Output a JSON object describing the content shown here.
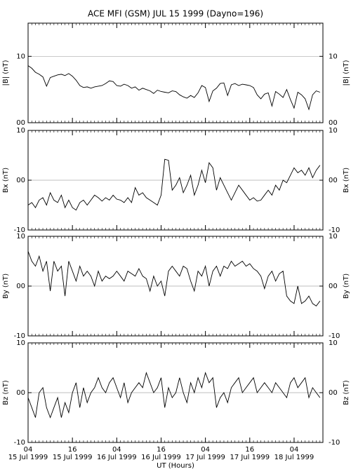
{
  "title": "ACE MFI (GSM) JUL 15 1999 (Dayno=196)",
  "xlabel": "UT (Hours)",
  "chart_data": [
    {
      "type": "line",
      "ylabel": "|B| (nT)",
      "color": "#000000",
      "grid": true,
      "xlim": [
        4,
        83.8
      ],
      "ylim": [
        0,
        15
      ],
      "yticks": [
        {
          "value": 0,
          "label": "00"
        },
        10
      ],
      "x": [
        4,
        5,
        6,
        7,
        8,
        9,
        10,
        11,
        12,
        13,
        14,
        15,
        16,
        17,
        18,
        19,
        20,
        21,
        22,
        23,
        24,
        25,
        26,
        27,
        28,
        29,
        30,
        31,
        32,
        33,
        34,
        35,
        36,
        37,
        38,
        39,
        40,
        41,
        42,
        43,
        44,
        45,
        46,
        47,
        48,
        49,
        50,
        51,
        52,
        53,
        54,
        55,
        56,
        57,
        58,
        59,
        60,
        61,
        62,
        63,
        64,
        65,
        66,
        67,
        68,
        69,
        70,
        71,
        72,
        73,
        74,
        75,
        76,
        77,
        78,
        79,
        80,
        81,
        82,
        83
      ],
      "values": [
        8.6,
        8.2,
        7.6,
        7.3,
        6.9,
        5.5,
        6.8,
        7.0,
        7.2,
        7.3,
        7.1,
        7.4,
        7.0,
        6.4,
        5.6,
        5.3,
        5.4,
        5.2,
        5.4,
        5.5,
        5.6,
        5.9,
        6.3,
        6.2,
        5.6,
        5.5,
        5.8,
        5.6,
        5.2,
        5.4,
        4.9,
        5.2,
        5.0,
        4.8,
        4.4,
        4.9,
        4.7,
        4.6,
        4.5,
        4.8,
        4.7,
        4.2,
        3.9,
        3.7,
        4.1,
        3.8,
        4.5,
        5.6,
        5.3,
        3.2,
        4.8,
        5.2,
        5.9,
        6.0,
        4.1,
        5.7,
        5.9,
        5.6,
        5.8,
        5.7,
        5.6,
        5.3,
        4.2,
        3.6,
        4.3,
        4.5,
        2.5,
        4.7,
        4.3,
        3.8,
        5.0,
        3.5,
        2.2,
        4.6,
        4.2,
        3.6,
        2.0,
        4.2,
        4.8,
        4.6
      ]
    },
    {
      "type": "line",
      "ylabel": "Bx (nT)",
      "color": "#000000",
      "grid": true,
      "xlim": [
        4,
        83.8
      ],
      "ylim": [
        -10,
        10
      ],
      "yticks": [
        -10,
        {
          "value": 0,
          "label": "00"
        },
        10
      ],
      "x": [
        4,
        5,
        6,
        7,
        8,
        9,
        10,
        11,
        12,
        13,
        14,
        15,
        16,
        17,
        18,
        19,
        20,
        21,
        22,
        23,
        24,
        25,
        26,
        27,
        28,
        29,
        30,
        31,
        32,
        33,
        34,
        35,
        36,
        37,
        38,
        39,
        40,
        41,
        42,
        43,
        44,
        45,
        46,
        47,
        48,
        49,
        50,
        51,
        52,
        53,
        54,
        55,
        56,
        57,
        58,
        59,
        60,
        61,
        62,
        63,
        64,
        65,
        66,
        67,
        68,
        69,
        70,
        71,
        72,
        73,
        74,
        75,
        76,
        77,
        78,
        79,
        80,
        81,
        82,
        83
      ],
      "values": [
        -5,
        -4.5,
        -5.5,
        -4,
        -3.5,
        -5,
        -2.5,
        -4,
        -4.5,
        -3,
        -5.5,
        -4,
        -5.5,
        -6,
        -4.5,
        -4,
        -5,
        -4,
        -3,
        -3.5,
        -4.2,
        -3.5,
        -4,
        -3,
        -3.8,
        -4,
        -4.5,
        -3.5,
        -4.5,
        -1.5,
        -3,
        -2.5,
        -3.5,
        -4,
        -4.5,
        -5,
        -3,
        4.2,
        4,
        -2,
        -1,
        0.5,
        -2.5,
        -1,
        1,
        -3,
        -1,
        2,
        -0.5,
        3.5,
        2.5,
        -2,
        0.5,
        -1,
        -2.5,
        -4,
        -2.5,
        -1,
        -2,
        -3,
        -4,
        -3.5,
        -4.2,
        -4,
        -3,
        -2,
        -3,
        -1,
        -2,
        0,
        -0.5,
        1,
        2.5,
        1.5,
        2,
        1,
        2.5,
        0.5,
        2,
        3
      ]
    },
    {
      "type": "line",
      "ylabel": "By (nT)",
      "color": "#000000",
      "grid": true,
      "xlim": [
        4,
        83.8
      ],
      "ylim": [
        -10,
        10
      ],
      "yticks": [
        -10,
        {
          "value": 0,
          "label": "00"
        },
        10
      ],
      "x": [
        4,
        5,
        6,
        7,
        8,
        9,
        10,
        11,
        12,
        13,
        14,
        15,
        16,
        17,
        18,
        19,
        20,
        21,
        22,
        23,
        24,
        25,
        26,
        27,
        28,
        29,
        30,
        31,
        32,
        33,
        34,
        35,
        36,
        37,
        38,
        39,
        40,
        41,
        42,
        43,
        44,
        45,
        46,
        47,
        48,
        49,
        50,
        51,
        52,
        53,
        54,
        55,
        56,
        57,
        58,
        59,
        60,
        61,
        62,
        63,
        64,
        65,
        66,
        67,
        68,
        69,
        70,
        71,
        72,
        73,
        74,
        75,
        76,
        77,
        78,
        79,
        80,
        81,
        82,
        83
      ],
      "values": [
        7,
        5,
        4,
        6,
        3,
        5,
        -1,
        5,
        3,
        4,
        -2,
        5,
        3,
        1,
        4,
        2,
        3,
        2,
        0,
        3,
        1,
        2,
        1.5,
        2,
        3,
        2,
        1,
        3,
        2.5,
        2,
        3.5,
        2,
        1.5,
        -1,
        2,
        0,
        1,
        -2,
        3,
        4,
        3,
        2,
        4,
        3.5,
        1,
        -1,
        3,
        2,
        4,
        0,
        3,
        4,
        2,
        4,
        3.5,
        5,
        4,
        4.5,
        5,
        4,
        4.5,
        3.5,
        3,
        2,
        -0.5,
        2,
        3,
        1,
        2.5,
        3,
        -2,
        -3,
        -3.5,
        0,
        -3.5,
        -3,
        -2,
        -3.5,
        -4,
        -3
      ]
    },
    {
      "type": "line",
      "ylabel": "Bz (nT)",
      "color": "#000000",
      "grid": true,
      "xlim": [
        4,
        83.8
      ],
      "ylim": [
        -10,
        10
      ],
      "yticks": [
        -10,
        {
          "value": 0,
          "label": "00"
        },
        10
      ],
      "xticks": [
        {
          "value": 4,
          "label": "04",
          "date": "15 Jul 1999"
        },
        {
          "value": 16,
          "label": "16",
          "date": "15 Jul 1999"
        },
        {
          "value": 28,
          "label": "04",
          "date": "16 Jul 1999"
        },
        {
          "value": 40,
          "label": "16",
          "date": "16 Jul 1999"
        },
        {
          "value": 52,
          "label": "04",
          "date": "17 Jul 1999"
        },
        {
          "value": 64,
          "label": "16",
          "date": "17 Jul 1999"
        },
        {
          "value": 76,
          "label": "04",
          "date": "18 Jul 1999"
        }
      ],
      "x": [
        4,
        5,
        6,
        7,
        8,
        9,
        10,
        11,
        12,
        13,
        14,
        15,
        16,
        17,
        18,
        19,
        20,
        21,
        22,
        23,
        24,
        25,
        26,
        27,
        28,
        29,
        30,
        31,
        32,
        33,
        34,
        35,
        36,
        37,
        38,
        39,
        40,
        41,
        42,
        43,
        44,
        45,
        46,
        47,
        48,
        49,
        50,
        51,
        52,
        53,
        54,
        55,
        56,
        57,
        58,
        59,
        60,
        61,
        62,
        63,
        64,
        65,
        66,
        67,
        68,
        69,
        70,
        71,
        72,
        73,
        74,
        75,
        76,
        77,
        78,
        79,
        80,
        81,
        82,
        83
      ],
      "values": [
        -1,
        -3,
        -5,
        0,
        1,
        -3,
        -5,
        -3,
        -1,
        -5,
        -2,
        -4,
        0,
        2,
        -3,
        1,
        -2,
        0,
        1,
        3,
        1,
        0,
        2,
        3,
        1,
        -1,
        2,
        -2,
        0,
        1,
        2,
        1,
        4,
        2,
        0,
        1,
        3,
        -3,
        1,
        -1,
        0,
        3,
        0,
        -2,
        2,
        0,
        3,
        1,
        4,
        2,
        3,
        -3,
        -1,
        0,
        -2,
        1,
        2,
        3,
        0,
        1,
        2,
        3,
        0,
        1,
        2,
        1,
        0,
        2,
        1,
        0,
        -1,
        2,
        3,
        1,
        2,
        3,
        -1,
        1,
        0,
        -1
      ]
    }
  ]
}
